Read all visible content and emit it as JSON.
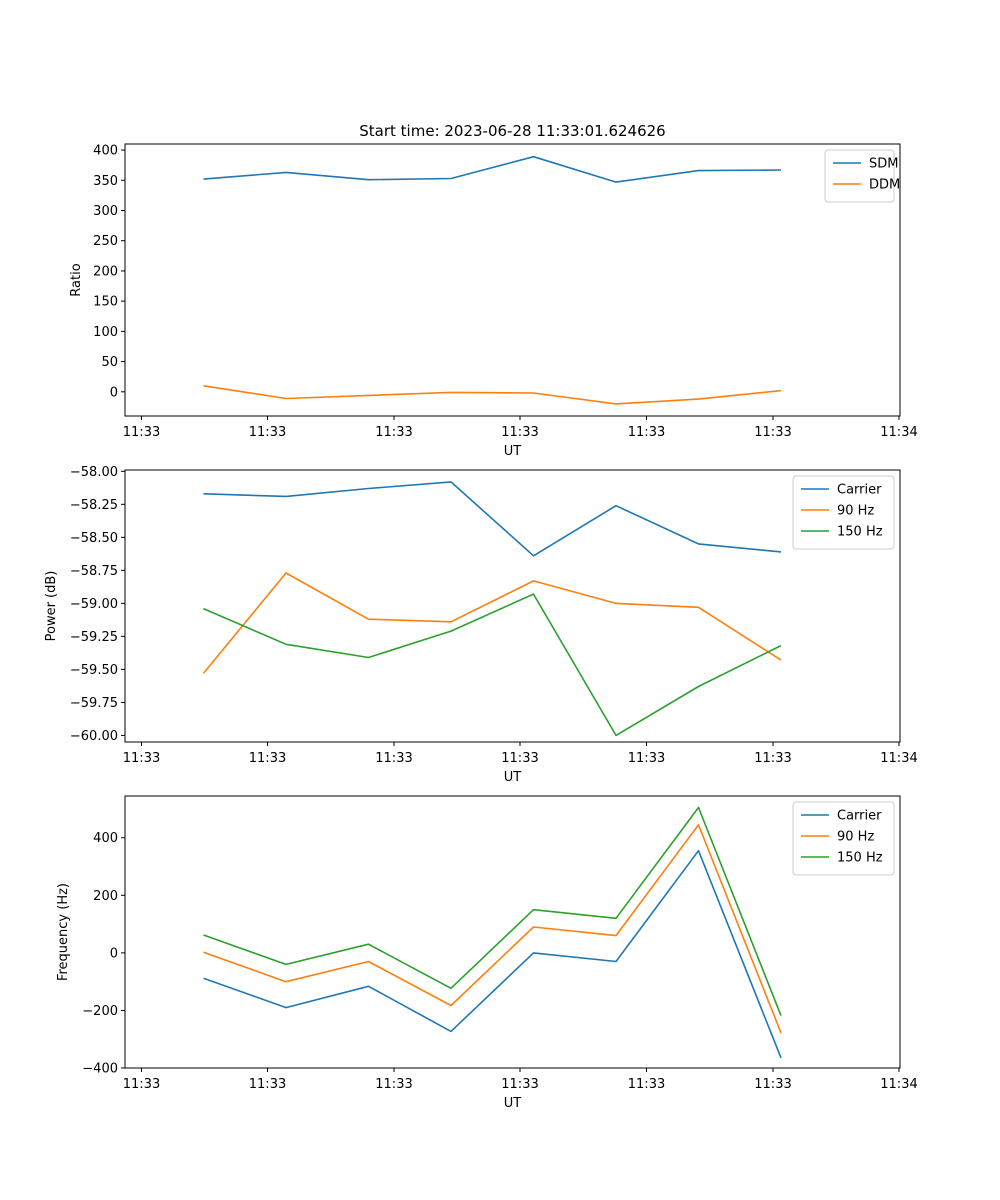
{
  "title": "Start time: 2023-06-28 11:33:01.624626",
  "chart_data": [
    {
      "type": "line",
      "xlabel": "UT",
      "ylabel": "Ratio",
      "xticks": [
        "11:33",
        "11:33",
        "11:33",
        "11:33",
        "11:33",
        "11:33",
        "11:34"
      ],
      "yticks": [
        "0",
        "50",
        "100",
        "150",
        "200",
        "250",
        "300",
        "350",
        "400"
      ],
      "ylim": [
        -40,
        410
      ],
      "x": [
        1,
        2,
        3,
        4,
        5,
        6,
        7,
        8
      ],
      "legend_position": "top-right",
      "grid": false,
      "series": [
        {
          "name": "SDM",
          "color": "#1f77b4",
          "values": [
            352,
            363,
            351,
            353,
            389,
            347,
            366,
            367
          ]
        },
        {
          "name": "DDM",
          "color": "#ff7f0e",
          "values": [
            10,
            -11,
            -6,
            -1,
            -2,
            -20,
            -12,
            2
          ]
        }
      ]
    },
    {
      "type": "line",
      "xlabel": "UT",
      "ylabel": "Power (dB)",
      "xticks": [
        "11:33",
        "11:33",
        "11:33",
        "11:33",
        "11:33",
        "11:33",
        "11:34"
      ],
      "yticks": [
        "−60.00",
        "−59.75",
        "−59.50",
        "−59.25",
        "−59.00",
        "−58.75",
        "−58.50",
        "−58.25",
        "−58.00"
      ],
      "ylim": [
        -60.05,
        -57.99
      ],
      "x": [
        1,
        2,
        3,
        4,
        5,
        6,
        7,
        8
      ],
      "legend_position": "top-right",
      "grid": false,
      "series": [
        {
          "name": "Carrier",
          "color": "#1f77b4",
          "values": [
            -58.17,
            -58.19,
            -58.13,
            -58.08,
            -58.64,
            -58.26,
            -58.55,
            -58.61
          ]
        },
        {
          "name": "90 Hz",
          "color": "#ff7f0e",
          "values": [
            -59.53,
            -58.77,
            -59.12,
            -59.14,
            -58.83,
            -59.0,
            -59.03,
            -59.43
          ]
        },
        {
          "name": "150 Hz",
          "color": "#2ca02c",
          "values": [
            -59.04,
            -59.31,
            -59.41,
            -59.21,
            -58.93,
            -60.0,
            -59.63,
            -59.32
          ]
        }
      ]
    },
    {
      "type": "line",
      "xlabel": "UT",
      "ylabel": "Frequency (Hz)",
      "xticks": [
        "11:33",
        "11:33",
        "11:33",
        "11:33",
        "11:33",
        "11:33",
        "11:34"
      ],
      "yticks": [
        "−400",
        "−200",
        "0",
        "200",
        "400"
      ],
      "ylim": [
        -400,
        545
      ],
      "x": [
        1,
        2,
        3,
        4,
        5,
        6,
        7,
        8
      ],
      "legend_position": "top-right",
      "grid": false,
      "series": [
        {
          "name": "Carrier",
          "color": "#1f77b4",
          "values": [
            -88,
            -190,
            -116,
            -273,
            0,
            -30,
            355,
            -365
          ]
        },
        {
          "name": "90 Hz",
          "color": "#ff7f0e",
          "values": [
            2,
            -100,
            -30,
            -183,
            90,
            60,
            445,
            -278
          ]
        },
        {
          "name": "150 Hz",
          "color": "#2ca02c",
          "values": [
            62,
            -40,
            30,
            -123,
            150,
            120,
            505,
            -218
          ]
        }
      ]
    }
  ]
}
